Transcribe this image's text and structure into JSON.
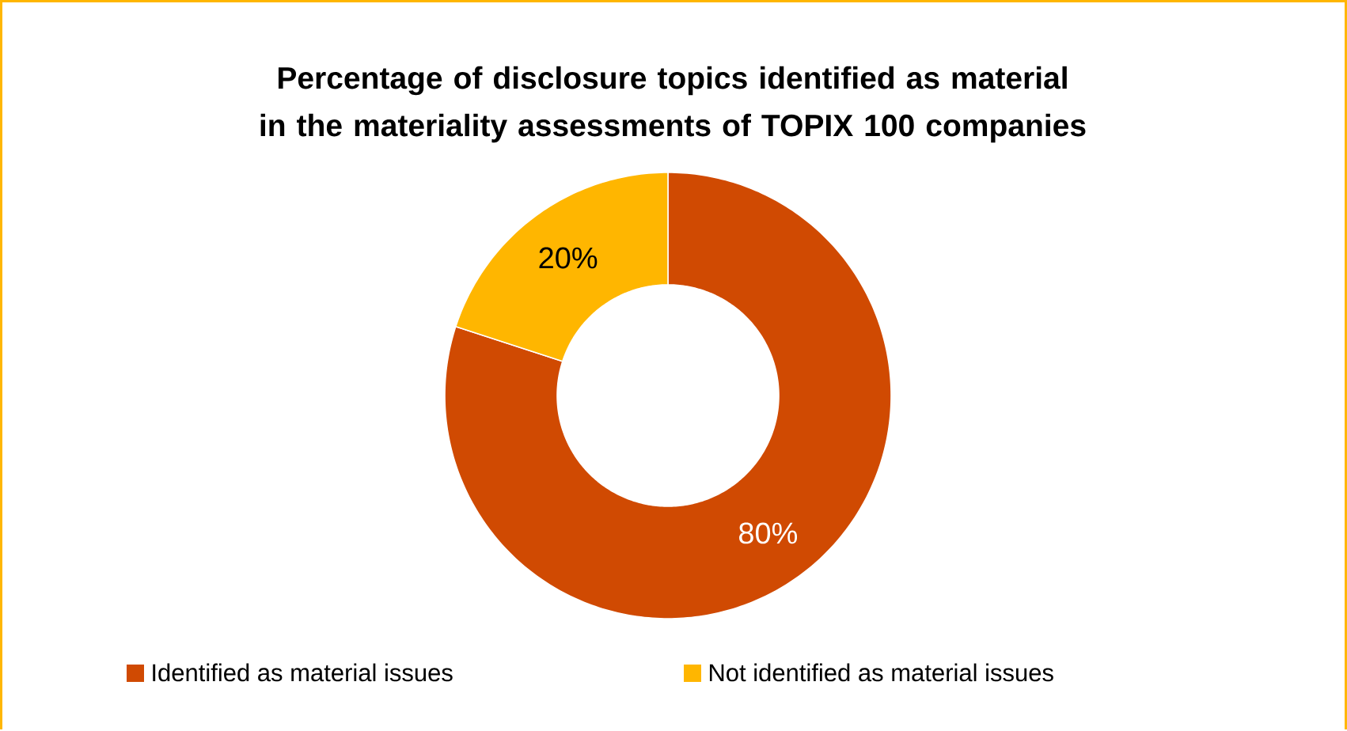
{
  "chart_data": {
    "type": "donut",
    "title": "Percentage of disclosure topics identified as material in the materiality assessments of TOPIX 100 companies",
    "categories": [
      "Identified as material issues",
      "Not identified as material issues"
    ],
    "values": [
      80,
      20
    ],
    "colors": [
      "#d04a02",
      "#ffb600"
    ],
    "value_labels": [
      "80%",
      "20%"
    ],
    "legend": "bottom"
  }
}
